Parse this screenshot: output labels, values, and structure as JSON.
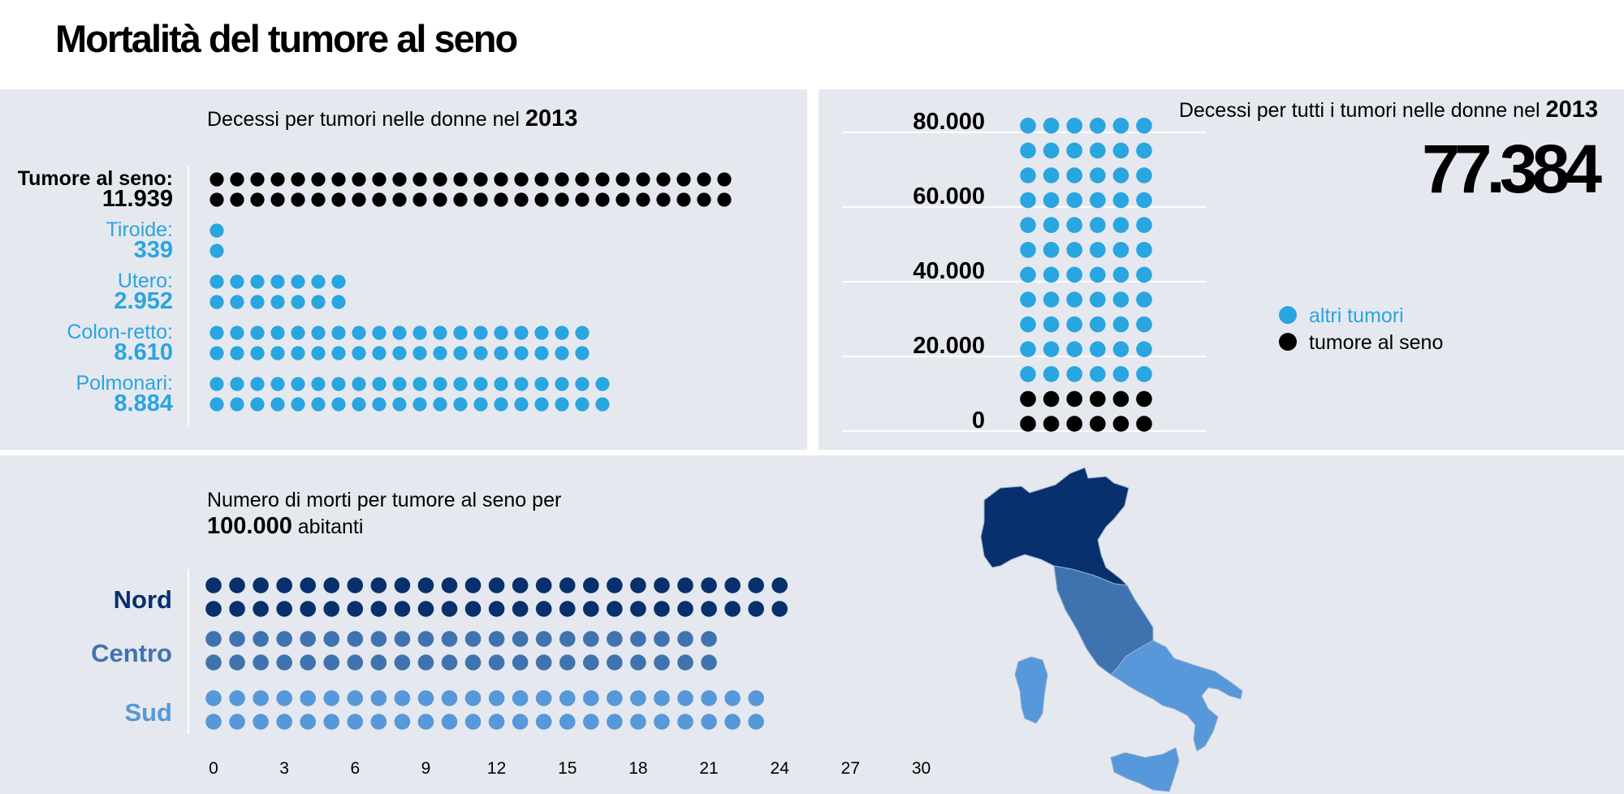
{
  "title": "Mortalità del tumore al seno",
  "colors": {
    "panel_bg": "#e5e8ee",
    "black": "#000000",
    "cyan": "#29a5e0",
    "nord": "#07306d",
    "centro": "#3f73b0",
    "sud": "#5698d9"
  },
  "chart_data": [
    {
      "type": "bar",
      "title_text": "Decessi per tumori nelle donne nel",
      "title_year": "2013",
      "categories": [
        "Tumore al seno:",
        "Tiroide:",
        "Utero:",
        "Colon-retto:",
        "Polmonari:"
      ],
      "value_labels": [
        "11.939",
        "339",
        "2.952",
        "8.610",
        "8.884"
      ],
      "values": [
        11939,
        339,
        2952,
        8610,
        8884
      ],
      "dots_per_row": [
        26,
        1,
        7,
        19,
        20
      ],
      "category_colors": [
        "#000000",
        "#29a5e0",
        "#29a5e0",
        "#29a5e0",
        "#29a5e0"
      ]
    },
    {
      "type": "bar",
      "title_text": "Decessi per tutti i tumori nelle donne nel",
      "title_year": "2013",
      "total_label": "77.384",
      "total": 77384,
      "ytick_labels": [
        "80.000",
        "60.000",
        "40.000",
        "20.000",
        "0"
      ],
      "yticks": [
        80000,
        60000,
        40000,
        20000,
        0
      ],
      "ylim": [
        0,
        80000
      ],
      "series": [
        {
          "name": "tumore al seno",
          "value": 11939,
          "dot_rows": 2,
          "color": "#000000"
        },
        {
          "name": "altri tumori",
          "value": 65445,
          "dot_rows": 11,
          "color": "#29a5e0"
        }
      ],
      "dots_per_row": 6,
      "legend": [
        "altri tumori",
        "tumore al seno"
      ],
      "legend_position": "right"
    },
    {
      "type": "bar",
      "title_line1": "Numero di morti per tumore al seno per",
      "title_bold": "100.000",
      "title_rest": "abitanti",
      "categories": [
        "Nord",
        "Centro",
        "Sud"
      ],
      "values": [
        25,
        22,
        24
      ],
      "category_colors": [
        "#07306d",
        "#3f73b0",
        "#5698d9"
      ],
      "xtick_labels": [
        "0",
        "3",
        "6",
        "9",
        "12",
        "15",
        "18",
        "21",
        "24",
        "27",
        "30"
      ],
      "xticks": [
        0,
        3,
        6,
        9,
        12,
        15,
        18,
        21,
        24,
        27,
        30
      ],
      "xlim": [
        0,
        30
      ]
    }
  ]
}
